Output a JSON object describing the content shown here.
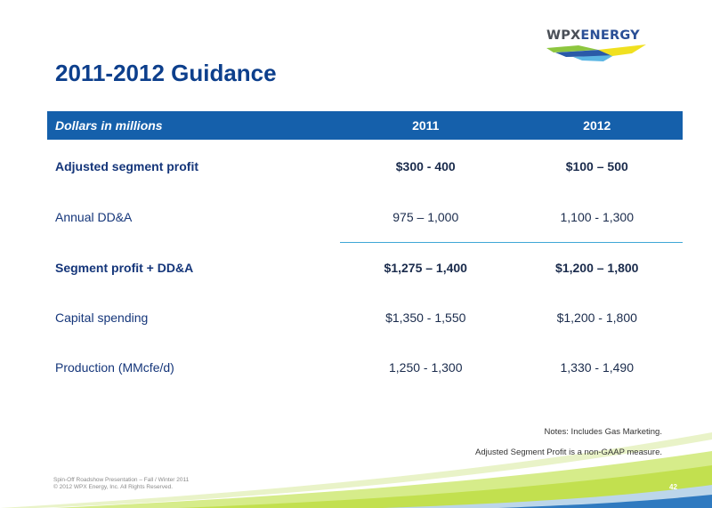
{
  "logo": {
    "text_main": "WPX",
    "text_accent": "ENERGY"
  },
  "title": "2011-2012 Guidance",
  "table": {
    "headers": {
      "label": "Dollars in millions",
      "col1": "2011",
      "col2": "2012"
    },
    "rows": [
      {
        "label": "Adjusted segment profit",
        "v2011": "$300 - 400",
        "v2012": "$100 – 500"
      },
      {
        "label": "Annual DD&A",
        "v2011": "975 – 1,000",
        "v2012": "1,100 - 1,300"
      },
      {
        "label": "Segment profit + DD&A",
        "v2011": "$1,275 – 1,400",
        "v2012": "$1,200 – 1,800"
      },
      {
        "label": "Capital spending",
        "v2011": "$1,350 - 1,550",
        "v2012": "$1,200 - 1,800"
      },
      {
        "label": "Production (MMcfe/d)",
        "v2011": "1,250 - 1,300",
        "v2012": "1,330 - 1,490"
      }
    ]
  },
  "notes": {
    "line1": "Notes: Includes Gas Marketing.",
    "line2": "Adjusted Segment Profit  is a non-GAAP measure."
  },
  "footer": {
    "line1": "Spin-Off Roadshow Presentation – Fall / Winter 2011",
    "line2": "© 2012 WPX Energy, Inc. All Rights Reserved."
  },
  "page_number": "42",
  "colors": {
    "title": "#0d3f8c",
    "header_bg": "#1560ab",
    "divider": "#3fa7d6",
    "logo_green": "#8dc63f",
    "logo_blue": "#2a5aa8",
    "logo_yellow": "#f0e020"
  }
}
